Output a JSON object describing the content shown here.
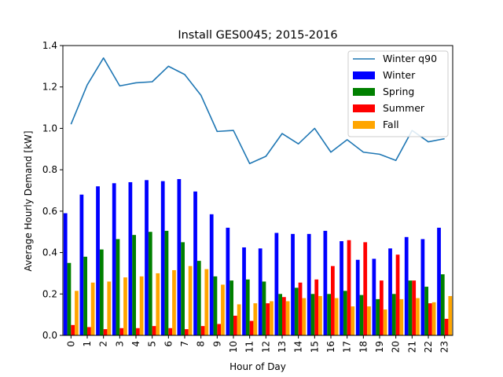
{
  "chart_data": {
    "type": "bar",
    "title": "Install GES0045; 2015-2016",
    "xlabel": "Hour of Day",
    "ylabel": "Average Hourly Demand [kW]",
    "ylim": [
      0,
      1.4
    ],
    "yticks": [
      "0.0",
      "0.2",
      "0.4",
      "0.6",
      "0.8",
      "1.0",
      "1.2",
      "1.4"
    ],
    "categories": [
      "0",
      "1",
      "2",
      "3",
      "4",
      "5",
      "6",
      "7",
      "8",
      "9",
      "10",
      "11",
      "12",
      "13",
      "14",
      "15",
      "16",
      "17",
      "18",
      "19",
      "20",
      "21",
      "22",
      "23"
    ],
    "grid": false,
    "legend_position": "top-right",
    "series": [
      {
        "name": "Winter",
        "color": "#0000ff",
        "values": [
          0.59,
          0.68,
          0.72,
          0.735,
          0.74,
          0.75,
          0.745,
          0.755,
          0.695,
          0.585,
          0.52,
          0.425,
          0.42,
          0.495,
          0.49,
          0.49,
          0.505,
          0.455,
          0.365,
          0.37,
          0.42,
          0.475,
          0.465,
          0.52
        ]
      },
      {
        "name": "Spring",
        "color": "#008000",
        "values": [
          0.35,
          0.38,
          0.415,
          0.465,
          0.485,
          0.5,
          0.505,
          0.45,
          0.36,
          0.285,
          0.265,
          0.27,
          0.26,
          0.2,
          0.23,
          0.2,
          0.2,
          0.215,
          0.195,
          0.175,
          0.2,
          0.265,
          0.235,
          0.295
        ]
      },
      {
        "name": "Summer",
        "color": "#ff0000",
        "values": [
          0.05,
          0.04,
          0.03,
          0.035,
          0.035,
          0.045,
          0.035,
          0.03,
          0.045,
          0.055,
          0.095,
          0.07,
          0.155,
          0.185,
          0.255,
          0.27,
          0.335,
          0.46,
          0.45,
          0.265,
          0.39,
          0.265,
          0.155,
          0.08
        ]
      },
      {
        "name": "Fall",
        "color": "#ffa500",
        "values": [
          0.215,
          0.255,
          0.26,
          0.28,
          0.285,
          0.3,
          0.315,
          0.335,
          0.32,
          0.245,
          0.15,
          0.155,
          0.165,
          0.165,
          0.18,
          0.19,
          0.18,
          0.14,
          0.14,
          0.125,
          0.175,
          0.18,
          0.16,
          0.19
        ]
      }
    ],
    "line_series": [
      {
        "name": "Winter q90",
        "color": "#1f77b4",
        "values": [
          1.02,
          1.21,
          1.34,
          1.205,
          1.22,
          1.225,
          1.3,
          1.26,
          1.16,
          0.985,
          0.99,
          0.83,
          0.865,
          0.975,
          0.925,
          1.0,
          0.885,
          0.945,
          0.885,
          0.875,
          0.845,
          0.99,
          0.935,
          0.95
        ]
      }
    ]
  }
}
